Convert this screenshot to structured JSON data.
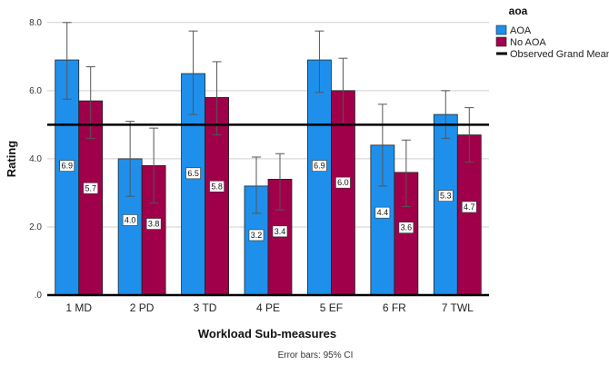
{
  "chart_data": {
    "type": "bar",
    "xlabel": "Workload Sub-measures",
    "ylabel": "Rating",
    "ylim": [
      0,
      8.5
    ],
    "yticks": [
      0,
      2,
      4,
      6,
      8
    ],
    "ytick_labels": [
      ".0",
      "2.0",
      "4.0",
      "6.0",
      "8.0"
    ],
    "categories": [
      "1 MD",
      "2 PD",
      "3 TD",
      "4 PE",
      "5 EF",
      "6 FR",
      "7 TWL"
    ],
    "legend_title": "aoa",
    "legend_position": "top-right",
    "grid": true,
    "series": [
      {
        "name": "AOA",
        "color": "#1E90EC",
        "values": [
          6.9,
          4.0,
          6.5,
          3.2,
          6.9,
          4.4,
          5.3
        ],
        "labels": [
          "6.9",
          "4.0",
          "6.5",
          "3.2",
          "6.9",
          "4.4",
          "5.3"
        ],
        "ci_low": [
          5.75,
          2.9,
          5.3,
          2.4,
          5.95,
          3.2,
          4.6
        ],
        "ci_high": [
          8.0,
          5.1,
          7.75,
          4.05,
          7.75,
          5.6,
          6.0
        ]
      },
      {
        "name": "No AOA",
        "color": "#A0004A",
        "values": [
          5.7,
          3.8,
          5.8,
          3.4,
          6.0,
          3.6,
          4.7
        ],
        "labels": [
          "5.7",
          "3.8",
          "5.8",
          "3.4",
          "6.0",
          "3.6",
          "4.7"
        ],
        "ci_low": [
          4.6,
          2.7,
          4.7,
          2.5,
          5.0,
          2.6,
          3.9
        ],
        "ci_high": [
          6.7,
          4.9,
          6.85,
          4.15,
          6.95,
          4.55,
          5.5
        ]
      }
    ],
    "reference_line": {
      "name": "Observed Grand Mean",
      "value": 5.0,
      "color": "#000000"
    },
    "footnote": "Error bars: 95% CI"
  }
}
